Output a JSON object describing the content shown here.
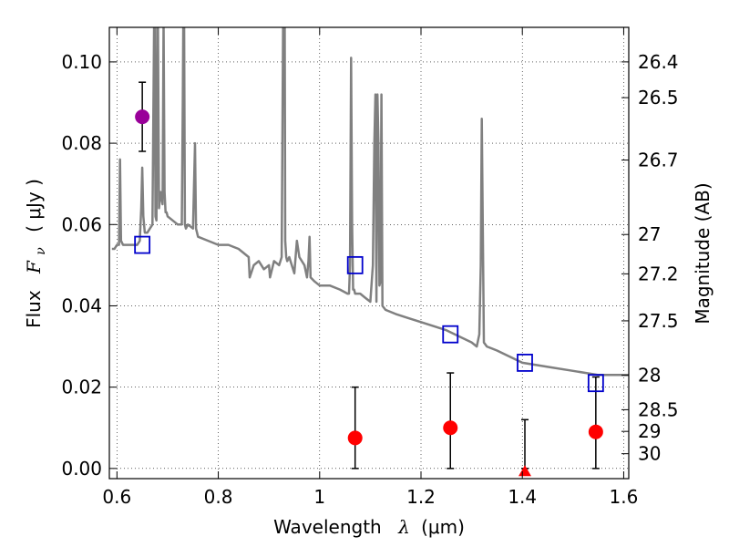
{
  "chart_data": {
    "type": "scatter",
    "title": "",
    "xlabel": "Wavelength",
    "xlabel_lambda": "λ",
    "xlabel_units": "(μm)",
    "ylabel_left": "Flux",
    "ylabel_left_symbol": "F",
    "ylabel_left_subscript": "ν",
    "ylabel_left_units": "( μJy )",
    "ylabel_right": "Magnitude (AB)",
    "xlim": [
      0.585,
      1.61
    ],
    "ylim": [
      -0.0025,
      0.1085
    ],
    "grid": true,
    "x_ticks": [
      {
        "value": 0.6,
        "label": "0.6"
      },
      {
        "value": 0.8,
        "label": "0.8"
      },
      {
        "value": 1.0,
        "label": "1"
      },
      {
        "value": 1.2,
        "label": "1.2"
      },
      {
        "value": 1.4,
        "label": "1.4"
      },
      {
        "value": 1.6,
        "label": "1.6"
      }
    ],
    "y_ticks": [
      {
        "value": 0.0,
        "label": "0.00"
      },
      {
        "value": 0.02,
        "label": "0.02"
      },
      {
        "value": 0.04,
        "label": "0.04"
      },
      {
        "value": 0.06,
        "label": "0.06"
      },
      {
        "value": 0.08,
        "label": "0.08"
      },
      {
        "value": 0.1,
        "label": "0.10"
      }
    ],
    "right_ticks": [
      {
        "mag": 26.4,
        "label": "26.4"
      },
      {
        "mag": 26.5,
        "label": "26.5"
      },
      {
        "mag": 26.7,
        "label": "26.7"
      },
      {
        "mag": 27.0,
        "label": "27"
      },
      {
        "mag": 27.2,
        "label": "27.2"
      },
      {
        "mag": 27.5,
        "label": "27.5"
      },
      {
        "mag": 28.0,
        "label": "28"
      },
      {
        "mag": 28.5,
        "label": "28.5"
      },
      {
        "mag": 29.0,
        "label": "29"
      },
      {
        "mag": 30.0,
        "label": "30"
      }
    ],
    "model_spectrum": {
      "name": "model SED",
      "color": "#808080",
      "x": [
        0.59,
        0.595,
        0.6,
        0.604,
        0.606,
        0.608,
        0.612,
        0.62,
        0.63,
        0.64,
        0.645,
        0.648,
        0.65,
        0.652,
        0.655,
        0.66,
        0.665,
        0.67,
        0.672,
        0.674,
        0.676,
        0.678,
        0.68,
        0.683,
        0.686,
        0.69,
        0.692,
        0.694,
        0.696,
        0.698,
        0.7,
        0.71,
        0.72,
        0.728,
        0.73,
        0.732,
        0.734,
        0.736,
        0.74,
        0.75,
        0.754,
        0.756,
        0.758,
        0.76,
        0.78,
        0.8,
        0.82,
        0.84,
        0.86,
        0.862,
        0.87,
        0.88,
        0.89,
        0.9,
        0.902,
        0.91,
        0.92,
        0.925,
        0.928,
        0.93,
        0.932,
        0.934,
        0.936,
        0.94,
        0.95,
        0.955,
        0.96,
        0.97,
        0.975,
        0.978,
        0.98,
        0.982,
        0.99,
        1.0,
        1.02,
        1.04,
        1.055,
        1.058,
        1.06,
        1.062,
        1.064,
        1.066,
        1.068,
        1.07,
        1.08,
        1.09,
        1.1,
        1.105,
        1.108,
        1.11,
        1.112,
        1.114,
        1.116,
        1.118,
        1.12,
        1.122,
        1.124,
        1.13,
        1.15,
        1.175,
        1.2,
        1.25,
        1.3,
        1.31,
        1.315,
        1.318,
        1.32,
        1.322,
        1.324,
        1.33,
        1.35,
        1.4,
        1.45,
        1.5,
        1.55,
        1.56,
        1.6,
        1.61
      ],
      "y": [
        0.054,
        0.054,
        0.055,
        0.055,
        0.076,
        0.056,
        0.055,
        0.055,
        0.055,
        0.055,
        0.056,
        0.064,
        0.074,
        0.062,
        0.058,
        0.058,
        0.059,
        0.06,
        0.09,
        0.12,
        0.062,
        0.061,
        0.13,
        0.064,
        0.068,
        0.065,
        0.11,
        0.068,
        0.063,
        0.063,
        0.062,
        0.061,
        0.06,
        0.06,
        0.09,
        0.13,
        0.06,
        0.059,
        0.06,
        0.059,
        0.08,
        0.059,
        0.058,
        0.057,
        0.056,
        0.055,
        0.055,
        0.054,
        0.052,
        0.047,
        0.05,
        0.051,
        0.049,
        0.05,
        0.047,
        0.051,
        0.05,
        0.052,
        0.11,
        0.16,
        0.056,
        0.052,
        0.051,
        0.052,
        0.048,
        0.056,
        0.052,
        0.05,
        0.047,
        0.051,
        0.057,
        0.047,
        0.046,
        0.045,
        0.045,
        0.044,
        0.043,
        0.043,
        0.05,
        0.101,
        0.06,
        0.044,
        0.044,
        0.043,
        0.043,
        0.042,
        0.041,
        0.05,
        0.08,
        0.092,
        0.041,
        0.092,
        0.08,
        0.045,
        0.046,
        0.092,
        0.04,
        0.039,
        0.038,
        0.037,
        0.036,
        0.034,
        0.031,
        0.03,
        0.033,
        0.05,
        0.086,
        0.06,
        0.031,
        0.03,
        0.029,
        0.026,
        0.025,
        0.024,
        0.023,
        0.023,
        0.023,
        0.023
      ]
    },
    "model_photometry": {
      "name": "model photometry",
      "marker": "square",
      "color": "#0000cc",
      "points": [
        {
          "x": 0.65,
          "y": 0.055
        },
        {
          "x": 1.07,
          "y": 0.05
        },
        {
          "x": 1.258,
          "y": 0.033
        },
        {
          "x": 1.405,
          "y": 0.026
        },
        {
          "x": 1.545,
          "y": 0.021
        }
      ]
    },
    "observed_photometry": {
      "name": "observed photometry",
      "marker": "circle",
      "color": "#ff0000",
      "points": [
        {
          "x": 1.07,
          "y": 0.0075,
          "yerr_low": 0.0,
          "yerr_high": 0.02
        },
        {
          "x": 1.258,
          "y": 0.01,
          "yerr_low": 0.0,
          "yerr_high": 0.0235
        },
        {
          "x": 1.545,
          "y": 0.009,
          "yerr_low": 0.0,
          "yerr_high": 0.0225
        }
      ]
    },
    "upper_limits": {
      "name": "non-detection",
      "marker": "triangle",
      "color": "#ff0000",
      "points": [
        {
          "x": 1.405,
          "y": -0.001,
          "yerr_low": 0.0,
          "yerr_high": 0.012
        }
      ]
    },
    "highlight_photometry": {
      "name": "highlighted point",
      "marker": "circle",
      "color": "#990099",
      "points": [
        {
          "x": 0.65,
          "y": 0.0865,
          "yerr_low": 0.078,
          "yerr_high": 0.095
        }
      ]
    }
  }
}
